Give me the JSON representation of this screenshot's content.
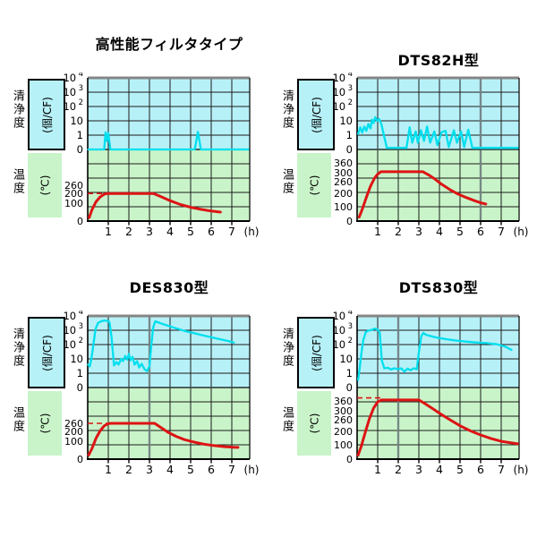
{
  "figure": {
    "background": "#ffffff"
  },
  "colors": {
    "clean_area_bg": "#b7f1f8",
    "temp_area_bg": "#c9f4c9",
    "clean_line": "#00dfee",
    "temp_line": "#dd1414",
    "grid": "#1c1c1c",
    "axis": "#000000",
    "boundary": "#3c4a4a",
    "top_border": "#858585",
    "marker": "#78888a",
    "text": "#000000"
  },
  "chart_data": [
    {
      "type": "line",
      "title": "高性能フィルタタイプ",
      "x_unit": "(h)",
      "x_ticks": [
        1,
        2,
        3,
        4,
        5,
        6,
        7
      ],
      "x_max": 7.85,
      "clean_axis_label": "清浄度",
      "clean_axis_unit": "(個/CF)",
      "clean_ticks": [
        {
          "base": "10",
          "exp": "4",
          "f": 1.0
        },
        {
          "base": "10",
          "exp": "3",
          "f": 0.8
        },
        {
          "base": "10",
          "exp": "2",
          "f": 0.6
        },
        {
          "base": "10",
          "exp": "",
          "f": 0.4
        },
        {
          "base": "1",
          "exp": "",
          "f": 0.2
        },
        {
          "base": "0",
          "exp": "",
          "f": 0.0
        }
      ],
      "temp_axis_label": "温度",
      "temp_axis_unit": "(℃)",
      "temp_ticks": [
        {
          "v": "260",
          "f": 0.5
        },
        {
          "v": "200",
          "f": 0.385
        },
        {
          "v": "100",
          "f": 0.25
        },
        {
          "v": "0",
          "f": 0.0
        }
      ],
      "temp_scale_max": 520,
      "temp_dash": {
        "level": 200,
        "from": 0,
        "to": 1.0
      },
      "event_marker_x": null,
      "series": [
        {
          "name": "清浄度",
          "unit": "個/CF",
          "scale": "log",
          "points": [
            [
              0.03,
              0.1
            ],
            [
              0.8,
              0.1
            ],
            [
              0.87,
              1.6
            ],
            [
              0.93,
              0.4
            ],
            [
              1.0,
              1.4
            ],
            [
              1.1,
              0.1
            ],
            [
              5.2,
              0.1
            ],
            [
              5.35,
              1.7
            ],
            [
              5.5,
              0.1
            ],
            [
              7.8,
              0.1
            ]
          ]
        },
        {
          "name": "温度",
          "unit": "℃",
          "scale": "linear",
          "points": [
            [
              0.07,
              25
            ],
            [
              0.2,
              80
            ],
            [
              0.4,
              140
            ],
            [
              0.6,
              175
            ],
            [
              0.8,
              195
            ],
            [
              0.95,
              200
            ],
            [
              3.2,
              200
            ],
            [
              3.6,
              175
            ],
            [
              4.0,
              148
            ],
            [
              4.5,
              120
            ],
            [
              5.0,
              100
            ],
            [
              5.5,
              85
            ],
            [
              6.0,
              73
            ],
            [
              6.45,
              65
            ]
          ]
        }
      ]
    },
    {
      "type": "line",
      "title": "DTS82H型",
      "x_unit": "(h)",
      "x_ticks": [
        1,
        2,
        3,
        4,
        5,
        6,
        7
      ],
      "x_max": 7.85,
      "clean_axis_label": "清浄度",
      "clean_axis_unit": "(個/CF)",
      "clean_ticks": [
        {
          "base": "10",
          "exp": "4",
          "f": 1.0
        },
        {
          "base": "10",
          "exp": "3",
          "f": 0.8
        },
        {
          "base": "10",
          "exp": "2",
          "f": 0.6
        },
        {
          "base": "10",
          "exp": "",
          "f": 0.4
        },
        {
          "base": "1",
          "exp": "",
          "f": 0.2
        },
        {
          "base": "0",
          "exp": "",
          "f": 0.0
        }
      ],
      "temp_axis_label": "温度",
      "temp_axis_unit": "(℃)",
      "temp_ticks": [
        {
          "v": "360",
          "f": 0.81
        },
        {
          "v": "300",
          "f": 0.675
        },
        {
          "v": "260",
          "f": 0.55
        },
        {
          "v": "200",
          "f": 0.39
        },
        {
          "v": "100",
          "f": 0.2
        },
        {
          "v": "0",
          "f": 0.0
        }
      ],
      "temp_scale_max": 450,
      "temp_dash": null,
      "event_marker_x": 6,
      "series": [
        {
          "name": "清浄度",
          "unit": "個/CF",
          "scale": "log",
          "points": [
            [
              0.05,
              1.2
            ],
            [
              0.15,
              3.5
            ],
            [
              0.25,
              1.5
            ],
            [
              0.35,
              4
            ],
            [
              0.45,
              2
            ],
            [
              0.55,
              6
            ],
            [
              0.65,
              3
            ],
            [
              0.72,
              12
            ],
            [
              0.8,
              7
            ],
            [
              0.88,
              18
            ],
            [
              0.98,
              10
            ],
            [
              1.08,
              13
            ],
            [
              1.18,
              6
            ],
            [
              1.3,
              1
            ],
            [
              1.45,
              0.13
            ],
            [
              2.4,
              0.13
            ],
            [
              2.55,
              3.5
            ],
            [
              2.68,
              0.3
            ],
            [
              2.85,
              1.8
            ],
            [
              2.95,
              0.3
            ],
            [
              3.1,
              2.2
            ],
            [
              3.25,
              0.4
            ],
            [
              3.4,
              4
            ],
            [
              3.55,
              0.3
            ],
            [
              3.75,
              1.8
            ],
            [
              3.9,
              0.2
            ],
            [
              4.1,
              1.6
            ],
            [
              4.3,
              2
            ],
            [
              4.45,
              0.15
            ],
            [
              4.7,
              2.2
            ],
            [
              4.85,
              0.3
            ],
            [
              5.05,
              1.8
            ],
            [
              5.2,
              0.15
            ],
            [
              5.4,
              2.4
            ],
            [
              5.6,
              0.13
            ],
            [
              7.8,
              0.13
            ]
          ]
        },
        {
          "name": "温度",
          "unit": "℃",
          "scale": "linear",
          "points": [
            [
              0.1,
              25
            ],
            [
              0.25,
              75
            ],
            [
              0.45,
              150
            ],
            [
              0.65,
              220
            ],
            [
              0.85,
              270
            ],
            [
              1.0,
              295
            ],
            [
              1.15,
              310
            ],
            [
              3.2,
              310
            ],
            [
              3.5,
              288
            ],
            [
              3.8,
              262
            ],
            [
              4.1,
              232
            ],
            [
              4.5,
              198
            ],
            [
              4.9,
              170
            ],
            [
              5.3,
              148
            ],
            [
              5.7,
              128
            ],
            [
              6.0,
              115
            ],
            [
              6.25,
              107
            ]
          ]
        }
      ]
    },
    {
      "type": "line",
      "title": "DES830型",
      "x_unit": "(h)",
      "x_ticks": [
        1,
        2,
        3,
        4,
        5,
        6,
        7
      ],
      "x_max": 7.85,
      "clean_axis_label": "清浄度",
      "clean_axis_unit": "(個/CF)",
      "clean_ticks": [
        {
          "base": "10",
          "exp": "4",
          "f": 1.0
        },
        {
          "base": "10",
          "exp": "3",
          "f": 0.8
        },
        {
          "base": "10",
          "exp": "2",
          "f": 0.6
        },
        {
          "base": "10",
          "exp": "",
          "f": 0.4
        },
        {
          "base": "1",
          "exp": "",
          "f": 0.2
        },
        {
          "base": "0",
          "exp": "",
          "f": 0.0
        }
      ],
      "temp_axis_label": "温度",
      "temp_axis_unit": "(℃)",
      "temp_ticks": [
        {
          "v": "260",
          "f": 0.5
        },
        {
          "v": "200",
          "f": 0.385
        },
        {
          "v": "100",
          "f": 0.25
        },
        {
          "v": "0",
          "f": 0.0
        }
      ],
      "temp_scale_max": 520,
      "temp_dash": {
        "level": 260,
        "from": 0,
        "to": 1.05
      },
      "event_marker_x": 3,
      "series": [
        {
          "name": "清浄度",
          "unit": "個/CF",
          "scale": "log",
          "points": [
            [
              0.02,
              4
            ],
            [
              0.1,
              3
            ],
            [
              0.18,
              10
            ],
            [
              0.28,
              100
            ],
            [
              0.38,
              1200
            ],
            [
              0.5,
              3200
            ],
            [
              0.65,
              4200
            ],
            [
              0.8,
              4800
            ],
            [
              0.95,
              4500
            ],
            [
              1.05,
              3800
            ],
            [
              1.15,
              400
            ],
            [
              1.28,
              3.5
            ],
            [
              1.4,
              6
            ],
            [
              1.5,
              4
            ],
            [
              1.62,
              10
            ],
            [
              1.72,
              7
            ],
            [
              1.82,
              16
            ],
            [
              1.92,
              9
            ],
            [
              2.0,
              22
            ],
            [
              2.08,
              8
            ],
            [
              2.18,
              14
            ],
            [
              2.28,
              4
            ],
            [
              2.4,
              7
            ],
            [
              2.5,
              2.5
            ],
            [
              2.62,
              4.5
            ],
            [
              2.75,
              2
            ],
            [
              2.88,
              1.4
            ],
            [
              3.0,
              3
            ],
            [
              3.08,
              60
            ],
            [
              3.18,
              1500
            ],
            [
              3.28,
              4200
            ],
            [
              3.7,
              2600
            ],
            [
              4.2,
              1500
            ],
            [
              4.7,
              900
            ],
            [
              5.2,
              600
            ],
            [
              5.8,
              380
            ],
            [
              6.3,
              260
            ],
            [
              6.8,
              180
            ],
            [
              7.1,
              140
            ]
          ]
        },
        {
          "name": "温度",
          "unit": "℃",
          "scale": "linear",
          "points": [
            [
              0.05,
              30
            ],
            [
              0.2,
              75
            ],
            [
              0.4,
              150
            ],
            [
              0.6,
              205
            ],
            [
              0.8,
              242
            ],
            [
              1.0,
              258
            ],
            [
              1.15,
              260
            ],
            [
              3.25,
              260
            ],
            [
              3.6,
              225
            ],
            [
              3.9,
              195
            ],
            [
              4.3,
              165
            ],
            [
              4.7,
              142
            ],
            [
              5.1,
              126
            ],
            [
              5.6,
              110
            ],
            [
              6.1,
              99
            ],
            [
              6.6,
              91
            ],
            [
              7.1,
              86
            ],
            [
              7.3,
              85
            ]
          ]
        }
      ]
    },
    {
      "type": "line",
      "title": "DTS830型",
      "x_unit": "(h)",
      "x_ticks": [
        1,
        2,
        3,
        4,
        5,
        6,
        7
      ],
      "x_max": 7.85,
      "clean_axis_label": "清浄度",
      "clean_axis_unit": "(個/CF)",
      "clean_ticks": [
        {
          "base": "10",
          "exp": "4",
          "f": 1.0
        },
        {
          "base": "10",
          "exp": "3",
          "f": 0.8
        },
        {
          "base": "10",
          "exp": "2",
          "f": 0.6
        },
        {
          "base": "10",
          "exp": "",
          "f": 0.4
        },
        {
          "base": "1",
          "exp": "",
          "f": 0.2
        },
        {
          "base": "0",
          "exp": "",
          "f": 0.0
        }
      ],
      "temp_axis_label": "温度",
      "temp_axis_unit": "(℃)",
      "temp_ticks": [
        {
          "v": "360",
          "f": 0.81
        },
        {
          "v": "300",
          "f": 0.675
        },
        {
          "v": "260",
          "f": 0.55
        },
        {
          "v": "200",
          "f": 0.39
        },
        {
          "v": "100",
          "f": 0.2
        },
        {
          "v": "0",
          "f": 0.0
        }
      ],
      "temp_scale_max": 450,
      "temp_dash": {
        "level": 385,
        "from": 0,
        "to": 1.15
      },
      "event_marker_x": 2,
      "series": [
        {
          "name": "清浄度",
          "unit": "個/CF",
          "scale": "log",
          "points": [
            [
              0.05,
              0.35
            ],
            [
              0.12,
              2
            ],
            [
              0.2,
              20
            ],
            [
              0.3,
              200
            ],
            [
              0.42,
              750
            ],
            [
              0.55,
              950
            ],
            [
              0.7,
              1050
            ],
            [
              0.85,
              1300
            ],
            [
              1.0,
              1100
            ],
            [
              1.1,
              700
            ],
            [
              1.2,
              8
            ],
            [
              1.32,
              2.2
            ],
            [
              1.5,
              2.4
            ],
            [
              1.65,
              1.8
            ],
            [
              1.8,
              2.2
            ],
            [
              2.0,
              1.9
            ],
            [
              2.15,
              2.2
            ],
            [
              2.3,
              1.3
            ],
            [
              2.45,
              2.1
            ],
            [
              2.6,
              1.6
            ],
            [
              2.75,
              2.2
            ],
            [
              2.9,
              1.9
            ],
            [
              3.0,
              30
            ],
            [
              3.12,
              400
            ],
            [
              3.22,
              650
            ],
            [
              3.35,
              480
            ],
            [
              3.8,
              320
            ],
            [
              4.3,
              240
            ],
            [
              4.8,
              190
            ],
            [
              5.3,
              160
            ],
            [
              5.8,
              140
            ],
            [
              6.3,
              125
            ],
            [
              6.8,
              105
            ],
            [
              7.1,
              80
            ],
            [
              7.3,
              60
            ],
            [
              7.5,
              42
            ]
          ]
        },
        {
          "name": "温度",
          "unit": "℃",
          "scale": "linear",
          "points": [
            [
              0.05,
              25
            ],
            [
              0.2,
              80
            ],
            [
              0.4,
              170
            ],
            [
              0.6,
              255
            ],
            [
              0.8,
              320
            ],
            [
              1.0,
              360
            ],
            [
              1.2,
              372
            ],
            [
              3.0,
              372
            ],
            [
              3.35,
              345
            ],
            [
              3.7,
              315
            ],
            [
              4.1,
              280
            ],
            [
              4.5,
              248
            ],
            [
              5.0,
              210
            ],
            [
              5.5,
              178
            ],
            [
              6.0,
              152
            ],
            [
              6.5,
              130
            ],
            [
              7.0,
              112
            ],
            [
              7.8,
              96
            ]
          ]
        }
      ]
    }
  ]
}
